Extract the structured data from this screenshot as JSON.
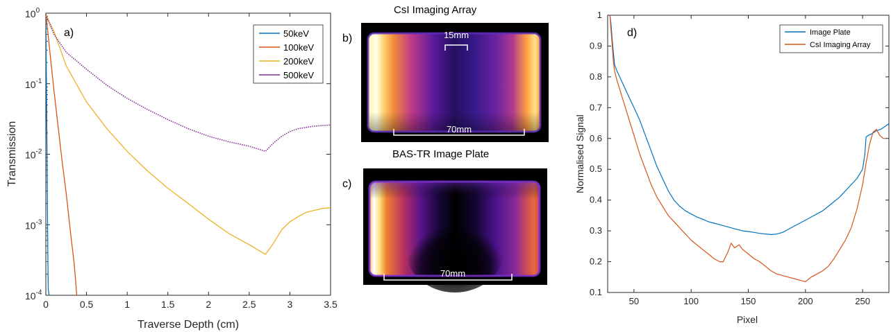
{
  "panel_a": {
    "panel_label": "a)",
    "chart_data": {
      "type": "line",
      "xlabel": "Traverse Depth (cm)",
      "ylabel": "Transmission",
      "xlim": [
        0,
        3.5
      ],
      "ylim": [
        0.0001,
        1
      ],
      "yscale": "log",
      "xticks": [
        "0",
        "0.5",
        "1",
        "1.5",
        "2",
        "2.5",
        "3",
        "3.5"
      ],
      "yticks": [
        {
          "base": "10",
          "exp": "0"
        },
        {
          "base": "10",
          "exp": "-1"
        },
        {
          "base": "10",
          "exp": "-2"
        },
        {
          "base": "10",
          "exp": "-3"
        },
        {
          "base": "10",
          "exp": "-4"
        }
      ],
      "grid": false,
      "legend_position": "top-right",
      "series": [
        {
          "name": "50keV",
          "color": "#0072BD",
          "x": [
            0,
            0.005,
            0.01,
            0.015,
            0.02,
            0.025,
            0.03,
            0.04
          ],
          "y": [
            1,
            0.2,
            0.04,
            0.008,
            0.0017,
            0.00035,
            0.00012,
            0.0001
          ]
        },
        {
          "name": "100keV",
          "color": "#D95319",
          "x": [
            0,
            0.05,
            0.1,
            0.15,
            0.2,
            0.25,
            0.3,
            0.35,
            0.38
          ],
          "y": [
            1,
            0.28,
            0.08,
            0.025,
            0.008,
            0.0028,
            0.00085,
            0.00027,
            0.0001
          ]
        },
        {
          "name": "200keV",
          "color": "#EDB120",
          "x": [
            0,
            0.1,
            0.25,
            0.5,
            0.75,
            1,
            1.25,
            1.5,
            1.75,
            2,
            2.25,
            2.5,
            2.7,
            2.8,
            2.9,
            3,
            3.1,
            3.2,
            3.3,
            3.4,
            3.5
          ],
          "y": [
            0.95,
            0.55,
            0.18,
            0.055,
            0.023,
            0.011,
            0.0058,
            0.0033,
            0.002,
            0.0012,
            0.00075,
            0.00052,
            0.00038,
            0.00055,
            0.00085,
            0.0011,
            0.0013,
            0.0015,
            0.0016,
            0.0017,
            0.00175
          ]
        },
        {
          "name": "500keV",
          "color": "#7E2F8E",
          "x": [
            0,
            0.1,
            0.25,
            0.5,
            0.75,
            1,
            1.25,
            1.5,
            1.75,
            2,
            2.25,
            2.5,
            2.7,
            2.8,
            2.9,
            3,
            3.1,
            3.2,
            3.3,
            3.4,
            3.5
          ],
          "y": [
            0.95,
            0.5,
            0.28,
            0.16,
            0.095,
            0.062,
            0.043,
            0.031,
            0.023,
            0.018,
            0.015,
            0.013,
            0.011,
            0.0145,
            0.018,
            0.021,
            0.023,
            0.024,
            0.025,
            0.0255,
            0.026
          ],
          "dotted": true
        }
      ]
    }
  },
  "panel_b": {
    "panel_label": "b)",
    "title": "CsI Imaging Array",
    "scale_top": "15mm",
    "scale_bottom": "70mm"
  },
  "panel_c": {
    "panel_label": "c)",
    "title": "BAS-TR Image Plate",
    "scale_bottom": "70mm"
  },
  "panel_d": {
    "panel_label": "d)",
    "chart_data": {
      "type": "line",
      "xlabel": "Pixel",
      "ylabel": "Normalised Signal",
      "xlim": [
        27,
        273
      ],
      "ylim": [
        0.1,
        1
      ],
      "xticks": [
        50,
        100,
        150,
        200,
        250
      ],
      "yticks": [
        0.1,
        0.2,
        0.3,
        0.4,
        0.5,
        0.6,
        0.7,
        0.8,
        0.9,
        1
      ],
      "grid": false,
      "legend_position": "top-right",
      "series": [
        {
          "name": "Image Plate",
          "color": "#0072BD",
          "x": [
            29,
            30,
            31,
            32,
            33,
            35,
            40,
            45,
            50,
            55,
            60,
            65,
            70,
            75,
            80,
            85,
            90,
            95,
            100,
            105,
            110,
            115,
            120,
            125,
            130,
            135,
            140,
            145,
            150,
            155,
            160,
            165,
            170,
            175,
            180,
            185,
            190,
            195,
            200,
            205,
            210,
            215,
            220,
            225,
            230,
            235,
            240,
            245,
            250,
            252,
            253,
            255,
            258,
            262,
            266,
            270,
            273
          ],
          "y": [
            1,
            0.97,
            0.92,
            0.88,
            0.84,
            0.82,
            0.78,
            0.74,
            0.7,
            0.66,
            0.61,
            0.56,
            0.51,
            0.47,
            0.43,
            0.4,
            0.38,
            0.365,
            0.355,
            0.345,
            0.338,
            0.33,
            0.325,
            0.32,
            0.315,
            0.31,
            0.305,
            0.3,
            0.298,
            0.295,
            0.292,
            0.29,
            0.288,
            0.29,
            0.295,
            0.305,
            0.315,
            0.325,
            0.335,
            0.345,
            0.355,
            0.365,
            0.38,
            0.395,
            0.41,
            0.43,
            0.45,
            0.47,
            0.5,
            0.55,
            0.605,
            0.61,
            0.615,
            0.625,
            0.63,
            0.64,
            0.648
          ]
        },
        {
          "name": "CsI Imaging Array",
          "color": "#D95319",
          "x": [
            29,
            30,
            31,
            32,
            33,
            35,
            40,
            45,
            50,
            55,
            60,
            65,
            70,
            75,
            80,
            85,
            90,
            95,
            100,
            105,
            110,
            115,
            120,
            125,
            128,
            132,
            135,
            138,
            142,
            145,
            150,
            155,
            160,
            165,
            170,
            175,
            180,
            185,
            190,
            195,
            200,
            205,
            210,
            215,
            220,
            225,
            230,
            235,
            240,
            245,
            250,
            253,
            256,
            259,
            262,
            265,
            268,
            270
          ],
          "y": [
            1,
            0.95,
            0.9,
            0.85,
            0.82,
            0.79,
            0.73,
            0.67,
            0.61,
            0.55,
            0.5,
            0.45,
            0.41,
            0.38,
            0.35,
            0.33,
            0.31,
            0.29,
            0.27,
            0.255,
            0.24,
            0.225,
            0.21,
            0.2,
            0.2,
            0.23,
            0.26,
            0.245,
            0.255,
            0.24,
            0.225,
            0.21,
            0.2,
            0.185,
            0.17,
            0.16,
            0.155,
            0.15,
            0.145,
            0.14,
            0.135,
            0.15,
            0.16,
            0.17,
            0.185,
            0.21,
            0.24,
            0.27,
            0.31,
            0.37,
            0.45,
            0.52,
            0.58,
            0.62,
            0.63,
            0.61,
            0.6,
            0.6
          ]
        }
      ]
    }
  }
}
